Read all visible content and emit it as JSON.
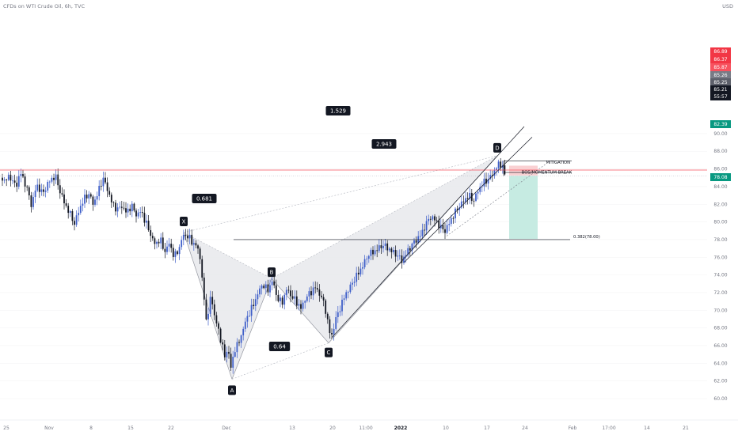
{
  "header": {
    "title": "CFDs on WTI Crude Oil, 6h, TVC",
    "currency": "USD"
  },
  "chart_data": {
    "type": "candlestick",
    "title": "CFDs on WTI Crude Oil, 6h, TVC",
    "y_axis": {
      "range": [
        59.3,
        91.2
      ],
      "ticks": [
        60,
        62,
        64,
        66,
        68,
        70,
        72,
        74,
        76,
        78,
        80,
        82,
        84,
        86,
        88,
        90
      ],
      "tick_labels": [
        "60.00",
        "62.00",
        "64.00",
        "66.00",
        "68.00",
        "70.00",
        "72.00",
        "74.00",
        "76.00",
        "78.00",
        "80.00",
        "82.00",
        "84.00",
        "86.00",
        "88.00",
        "90.00"
      ]
    },
    "x_axis": {
      "tick_labels": [
        "25",
        "Nov",
        "8",
        "15",
        "22",
        "Dec",
        "13",
        "20",
        "11:00",
        "2022",
        "10",
        "17",
        "24",
        "Feb",
        "17:00",
        "14",
        "21"
      ]
    },
    "price_tags": [
      {
        "value": 86.89,
        "text": "86.89",
        "color": "#f23645"
      },
      {
        "value": 86.37,
        "text": "86.37",
        "color": "#f23645"
      },
      {
        "value": 85.87,
        "text": "85.87",
        "color": "#f7525f"
      },
      {
        "value": 85.26,
        "text": "85.26",
        "color": "#787b86"
      },
      {
        "value": 85.25,
        "text": "85.25",
        "color": "#5d606b"
      },
      {
        "value": 85.21,
        "text": "85.21",
        "color": "#131722"
      },
      {
        "value": 84.7,
        "text": "55:57",
        "color": "#131722"
      },
      {
        "value": 82.39,
        "text": "82.39",
        "color": "#089981"
      },
      {
        "value": 78.08,
        "text": "78.08",
        "color": "#089981"
      }
    ],
    "pattern_points": [
      {
        "name": "X",
        "date": "Nov 24",
        "value": 78.8
      },
      {
        "name": "A",
        "date": "Nov 30",
        "value": 62.2
      },
      {
        "name": "B",
        "date": "Dec 9",
        "value": 73.6
      },
      {
        "name": "C",
        "date": "Dec 20",
        "value": 66.3
      },
      {
        "name": "D",
        "date": "Jan 19",
        "value": 87.5
      }
    ],
    "ratios": [
      {
        "text": "1.529",
        "between": "X-D"
      },
      {
        "text": "0.681",
        "between": "X-B"
      },
      {
        "text": "2.943",
        "between": "B-D"
      },
      {
        "text": "0.64",
        "between": "A-C"
      }
    ],
    "annotations": [
      {
        "text": "MITIGATION",
        "value": 86.4
      },
      {
        "text": "BOS/MOMENTUM BREAK",
        "value": 85.3
      },
      {
        "text": "0.382(78.00)",
        "value": 78.0
      }
    ],
    "trade_zones": {
      "stop_zone": [
        85.26,
        86.37
      ],
      "target_zone": [
        78.08,
        85.21
      ]
    },
    "colors": {
      "up_candle": "#3f5fc9",
      "down_candle": "#131722",
      "pattern_fill": "#e8e9ec",
      "stop_zone": "#f9d1d3",
      "target_zone": "#c6ebe2",
      "red_line": "#f7525f"
    }
  }
}
